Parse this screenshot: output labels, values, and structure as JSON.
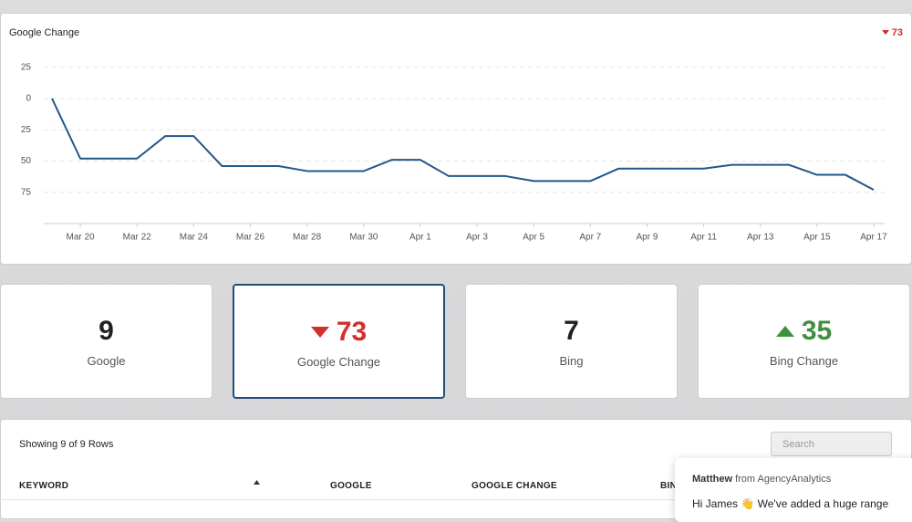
{
  "chart_data": {
    "type": "line",
    "title": "Google Change",
    "categories": [
      null,
      "Mar 20",
      null,
      "Mar 22",
      null,
      "Mar 24",
      null,
      "Mar 26",
      null,
      "Mar 28",
      null,
      "Mar 30",
      null,
      "Apr 1",
      null,
      "Apr 3",
      null,
      "Apr 5",
      null,
      "Apr 7",
      null,
      "Apr 9",
      null,
      "Apr 11",
      null,
      "Apr 13",
      null,
      "Apr 15",
      null,
      "Apr 17"
    ],
    "values": [
      0,
      -48,
      -48,
      -48,
      -30,
      -30,
      -54,
      -54,
      -54,
      -58,
      -58,
      -58,
      -49,
      -49,
      -62,
      -62,
      -62,
      -66,
      -66,
      -66,
      -56,
      -56,
      -56,
      -56,
      -53,
      -53,
      -53,
      -61,
      -61,
      -73
    ],
    "color": "#22578a",
    "ylim": [
      -100,
      35
    ],
    "yticks": [
      25,
      0,
      {
        "value": -25,
        "label": "25"
      },
      {
        "value": -50,
        "label": "50"
      },
      {
        "value": -75,
        "label": "75"
      }
    ],
    "grid": true
  },
  "header_change": "73",
  "cards": [
    {
      "value": "9",
      "label": "Google"
    },
    {
      "value": "73",
      "label": "Google Change"
    },
    {
      "value": "7",
      "label": "Bing"
    },
    {
      "value": "35",
      "label": "Bing Change"
    }
  ],
  "table": {
    "summary": "Showing 9 of 9 Rows",
    "search_placeholder": "Search",
    "columns": [
      "KEYWORD",
      "GOOGLE",
      "GOOGLE CHANGE",
      "BIN"
    ]
  },
  "chat": {
    "sender": "Matthew",
    "sender_org": "from AgencyAnalytics",
    "message": "Hi James 👋 We've added a huge range"
  }
}
